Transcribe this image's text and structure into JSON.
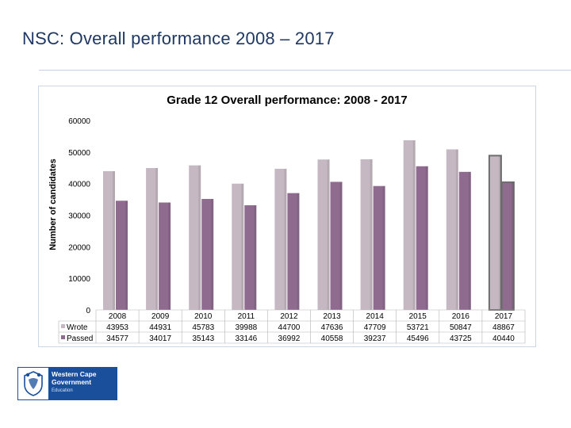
{
  "page": {
    "title": "NSC: Overall performance 2008 – 2017"
  },
  "logo": {
    "line1": "Western Cape",
    "line2": "Government",
    "subline": "Education",
    "crest_icon": "coat-of-arms-icon"
  },
  "colors": {
    "wrote": "#c5b8c2",
    "passed": "#8f6c8f",
    "highlight_border": "#6e6e6e",
    "title": "#1f3864"
  },
  "chart_data": {
    "type": "bar",
    "title": "Grade 12 Overall performance: 2008 - 2017",
    "xlabel": "",
    "ylabel": "Number of candidates",
    "ylim": [
      0,
      60000
    ],
    "yticks": [
      0,
      10000,
      20000,
      30000,
      40000,
      50000,
      60000
    ],
    "categories": [
      "2008",
      "2009",
      "2010",
      "2011",
      "2012",
      "2013",
      "2014",
      "2015",
      "2016",
      "2017"
    ],
    "series": [
      {
        "name": "Wrote",
        "values": [
          43953,
          44931,
          45783,
          39988,
          44700,
          47636,
          47709,
          53721,
          50847,
          48867
        ]
      },
      {
        "name": "Passed",
        "values": [
          34577,
          34017,
          35143,
          33146,
          36992,
          40558,
          39237,
          45496,
          43725,
          40440
        ]
      }
    ],
    "highlight_category": "2017",
    "data_table": true
  }
}
